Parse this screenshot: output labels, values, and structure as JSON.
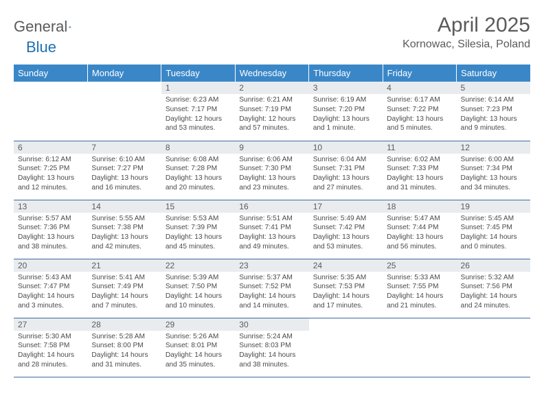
{
  "logo": {
    "word1": "General",
    "word2": "Blue"
  },
  "title": "April 2025",
  "location": "Kornowac, Silesia, Poland",
  "colors": {
    "header_bg": "#3a87c8",
    "header_fg": "#ffffff",
    "daynum_bg": "#e9ecef",
    "text": "#5a5a5a",
    "row_border": "#3a6a9a",
    "logo_gray": "#5a5a5a",
    "logo_blue": "#1f6fb2"
  },
  "weekdays": [
    "Sunday",
    "Monday",
    "Tuesday",
    "Wednesday",
    "Thursday",
    "Friday",
    "Saturday"
  ],
  "weeks": [
    [
      {
        "n": "",
        "sr": "",
        "ss": "",
        "dl": ""
      },
      {
        "n": "",
        "sr": "",
        "ss": "",
        "dl": ""
      },
      {
        "n": "1",
        "sr": "Sunrise: 6:23 AM",
        "ss": "Sunset: 7:17 PM",
        "dl": "Daylight: 12 hours and 53 minutes."
      },
      {
        "n": "2",
        "sr": "Sunrise: 6:21 AM",
        "ss": "Sunset: 7:19 PM",
        "dl": "Daylight: 12 hours and 57 minutes."
      },
      {
        "n": "3",
        "sr": "Sunrise: 6:19 AM",
        "ss": "Sunset: 7:20 PM",
        "dl": "Daylight: 13 hours and 1 minute."
      },
      {
        "n": "4",
        "sr": "Sunrise: 6:17 AM",
        "ss": "Sunset: 7:22 PM",
        "dl": "Daylight: 13 hours and 5 minutes."
      },
      {
        "n": "5",
        "sr": "Sunrise: 6:14 AM",
        "ss": "Sunset: 7:23 PM",
        "dl": "Daylight: 13 hours and 9 minutes."
      }
    ],
    [
      {
        "n": "6",
        "sr": "Sunrise: 6:12 AM",
        "ss": "Sunset: 7:25 PM",
        "dl": "Daylight: 13 hours and 12 minutes."
      },
      {
        "n": "7",
        "sr": "Sunrise: 6:10 AM",
        "ss": "Sunset: 7:27 PM",
        "dl": "Daylight: 13 hours and 16 minutes."
      },
      {
        "n": "8",
        "sr": "Sunrise: 6:08 AM",
        "ss": "Sunset: 7:28 PM",
        "dl": "Daylight: 13 hours and 20 minutes."
      },
      {
        "n": "9",
        "sr": "Sunrise: 6:06 AM",
        "ss": "Sunset: 7:30 PM",
        "dl": "Daylight: 13 hours and 23 minutes."
      },
      {
        "n": "10",
        "sr": "Sunrise: 6:04 AM",
        "ss": "Sunset: 7:31 PM",
        "dl": "Daylight: 13 hours and 27 minutes."
      },
      {
        "n": "11",
        "sr": "Sunrise: 6:02 AM",
        "ss": "Sunset: 7:33 PM",
        "dl": "Daylight: 13 hours and 31 minutes."
      },
      {
        "n": "12",
        "sr": "Sunrise: 6:00 AM",
        "ss": "Sunset: 7:34 PM",
        "dl": "Daylight: 13 hours and 34 minutes."
      }
    ],
    [
      {
        "n": "13",
        "sr": "Sunrise: 5:57 AM",
        "ss": "Sunset: 7:36 PM",
        "dl": "Daylight: 13 hours and 38 minutes."
      },
      {
        "n": "14",
        "sr": "Sunrise: 5:55 AM",
        "ss": "Sunset: 7:38 PM",
        "dl": "Daylight: 13 hours and 42 minutes."
      },
      {
        "n": "15",
        "sr": "Sunrise: 5:53 AM",
        "ss": "Sunset: 7:39 PM",
        "dl": "Daylight: 13 hours and 45 minutes."
      },
      {
        "n": "16",
        "sr": "Sunrise: 5:51 AM",
        "ss": "Sunset: 7:41 PM",
        "dl": "Daylight: 13 hours and 49 minutes."
      },
      {
        "n": "17",
        "sr": "Sunrise: 5:49 AM",
        "ss": "Sunset: 7:42 PM",
        "dl": "Daylight: 13 hours and 53 minutes."
      },
      {
        "n": "18",
        "sr": "Sunrise: 5:47 AM",
        "ss": "Sunset: 7:44 PM",
        "dl": "Daylight: 13 hours and 56 minutes."
      },
      {
        "n": "19",
        "sr": "Sunrise: 5:45 AM",
        "ss": "Sunset: 7:45 PM",
        "dl": "Daylight: 14 hours and 0 minutes."
      }
    ],
    [
      {
        "n": "20",
        "sr": "Sunrise: 5:43 AM",
        "ss": "Sunset: 7:47 PM",
        "dl": "Daylight: 14 hours and 3 minutes."
      },
      {
        "n": "21",
        "sr": "Sunrise: 5:41 AM",
        "ss": "Sunset: 7:49 PM",
        "dl": "Daylight: 14 hours and 7 minutes."
      },
      {
        "n": "22",
        "sr": "Sunrise: 5:39 AM",
        "ss": "Sunset: 7:50 PM",
        "dl": "Daylight: 14 hours and 10 minutes."
      },
      {
        "n": "23",
        "sr": "Sunrise: 5:37 AM",
        "ss": "Sunset: 7:52 PM",
        "dl": "Daylight: 14 hours and 14 minutes."
      },
      {
        "n": "24",
        "sr": "Sunrise: 5:35 AM",
        "ss": "Sunset: 7:53 PM",
        "dl": "Daylight: 14 hours and 17 minutes."
      },
      {
        "n": "25",
        "sr": "Sunrise: 5:33 AM",
        "ss": "Sunset: 7:55 PM",
        "dl": "Daylight: 14 hours and 21 minutes."
      },
      {
        "n": "26",
        "sr": "Sunrise: 5:32 AM",
        "ss": "Sunset: 7:56 PM",
        "dl": "Daylight: 14 hours and 24 minutes."
      }
    ],
    [
      {
        "n": "27",
        "sr": "Sunrise: 5:30 AM",
        "ss": "Sunset: 7:58 PM",
        "dl": "Daylight: 14 hours and 28 minutes."
      },
      {
        "n": "28",
        "sr": "Sunrise: 5:28 AM",
        "ss": "Sunset: 8:00 PM",
        "dl": "Daylight: 14 hours and 31 minutes."
      },
      {
        "n": "29",
        "sr": "Sunrise: 5:26 AM",
        "ss": "Sunset: 8:01 PM",
        "dl": "Daylight: 14 hours and 35 minutes."
      },
      {
        "n": "30",
        "sr": "Sunrise: 5:24 AM",
        "ss": "Sunset: 8:03 PM",
        "dl": "Daylight: 14 hours and 38 minutes."
      },
      {
        "n": "",
        "sr": "",
        "ss": "",
        "dl": ""
      },
      {
        "n": "",
        "sr": "",
        "ss": "",
        "dl": ""
      },
      {
        "n": "",
        "sr": "",
        "ss": "",
        "dl": ""
      }
    ]
  ]
}
